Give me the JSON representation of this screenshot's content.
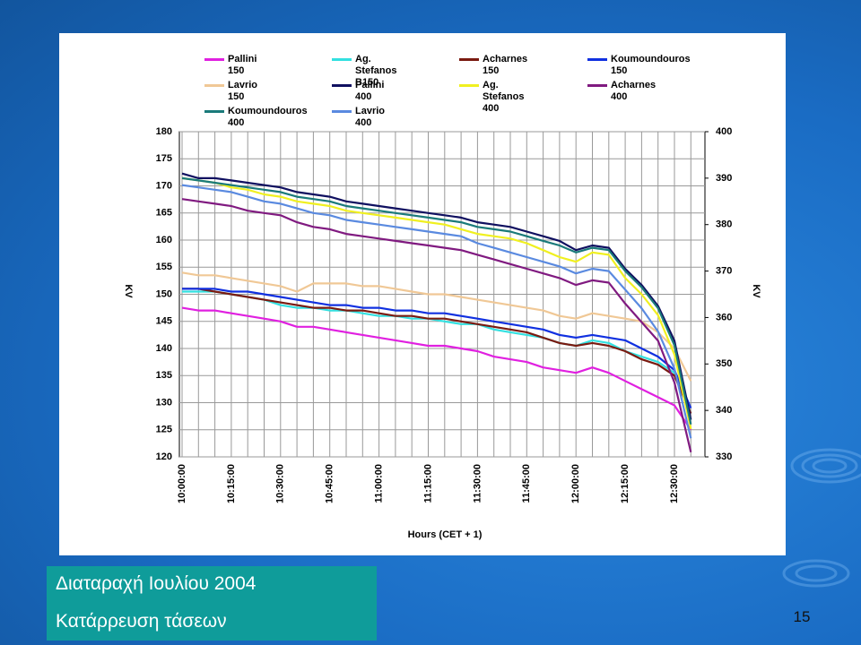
{
  "slide": {
    "title": "Διαταραχή Ιουλίου 2004",
    "subtitle": "Κατάρρευση τάσεων",
    "page_number": 15
  },
  "chart_data": {
    "type": "line",
    "x_label": "Hours (CET + 1)",
    "y_label": "KV",
    "y2_label": "KV",
    "categories": [
      "10:00:00",
      null,
      null,
      "10:15:00",
      null,
      null,
      "10:30:00",
      null,
      null,
      "10:45:00",
      null,
      null,
      "11:00:00",
      null,
      null,
      "11:15:00",
      null,
      null,
      "11:30:00",
      null,
      null,
      "11:45:00",
      null,
      null,
      "12:00:00",
      null,
      null,
      "12:15:00",
      null,
      null,
      "12:30:00",
      null
    ],
    "ylim": [
      120,
      180
    ],
    "yticks": [
      120,
      125,
      130,
      135,
      140,
      145,
      150,
      155,
      160,
      165,
      170,
      175,
      180
    ],
    "y2lim": [
      330,
      400
    ],
    "y2ticks": [
      330,
      340,
      350,
      360,
      370,
      380,
      390,
      400
    ],
    "grid": true,
    "series": [
      {
        "name": "Pallini\n150",
        "color": "#e020e0",
        "values": [
          147.5,
          147,
          147,
          146.5,
          146,
          145.5,
          145,
          144,
          144,
          143.5,
          143,
          142.5,
          142,
          141.5,
          141,
          140.5,
          140.5,
          140,
          139.5,
          138.5,
          138,
          137.5,
          136.5,
          136,
          135.5,
          136.5,
          135.5,
          134,
          132.5,
          131,
          129.5,
          125
        ]
      },
      {
        "name": "Ag. Stefanos\nB150",
        "color": "#33e0e0",
        "values": [
          150.5,
          150.5,
          150.5,
          150,
          149.5,
          149,
          148,
          147.5,
          147.5,
          147,
          147,
          146.5,
          146,
          146,
          145.5,
          145.5,
          145,
          144.5,
          144.5,
          143.5,
          143,
          142.5,
          142,
          141,
          140.5,
          141.5,
          141,
          139.5,
          138.5,
          137.5,
          135.5,
          128
        ]
      },
      {
        "name": "Acharnes\n150",
        "color": "#7a1a10",
        "values": [
          151,
          151,
          150.5,
          150,
          149.5,
          149,
          148.5,
          148,
          147.5,
          147.5,
          147,
          147,
          146.5,
          146,
          146,
          145.5,
          145.5,
          145,
          144.5,
          144,
          143.5,
          143,
          142,
          141,
          140.5,
          141,
          140.5,
          139.5,
          138,
          137,
          135,
          128
        ]
      },
      {
        "name": "Koumoundouros\n150",
        "color": "#1030e0",
        "values": [
          151,
          151,
          151,
          150.5,
          150.5,
          150,
          149.5,
          149,
          148.5,
          148,
          148,
          147.5,
          147.5,
          147,
          147,
          146.5,
          146.5,
          146,
          145.5,
          145,
          144.5,
          144,
          143.5,
          142.5,
          142,
          142.5,
          142,
          141.5,
          140,
          138.5,
          136,
          129
        ]
      },
      {
        "name": "Lavrio\n150",
        "color": "#f0c896",
        "values": [
          154,
          153.5,
          153.5,
          153,
          152.5,
          152,
          151.5,
          150.5,
          152,
          152,
          152,
          151.5,
          151.5,
          151,
          150.5,
          150,
          150,
          149.5,
          149,
          148.5,
          148,
          147.5,
          147,
          146,
          145.5,
          146.5,
          146,
          145.5,
          145,
          143,
          140,
          134
        ]
      },
      {
        "name": "Pallini\n400",
        "color": "#101060",
        "axis": "y2",
        "values": [
          391,
          390,
          390,
          389.5,
          389,
          388.5,
          388,
          387,
          386.5,
          386,
          385,
          384.5,
          384,
          383.5,
          383,
          382.5,
          382,
          381.5,
          380.5,
          380,
          379.5,
          378.5,
          377.5,
          376.5,
          374.5,
          375.5,
          375,
          370.5,
          367,
          362.5,
          355,
          338
        ]
      },
      {
        "name": "Ag. Stefanos\n400",
        "color": "#f0f020",
        "axis": "y2",
        "values": [
          390,
          389.5,
          389,
          388,
          387.5,
          386.5,
          386,
          385,
          384.5,
          384,
          383,
          382.5,
          382,
          381.5,
          381,
          380.5,
          380,
          379,
          378,
          377.5,
          377,
          376,
          374.5,
          373,
          372,
          374,
          373.5,
          368.5,
          365,
          360.5,
          352,
          336
        ]
      },
      {
        "name": "Acharnes\n400",
        "color": "#801a80",
        "axis": "y2",
        "values": [
          385.5,
          385,
          384.5,
          384,
          383,
          382.5,
          382,
          380.5,
          379.5,
          379,
          378,
          377.5,
          377,
          376.5,
          376,
          375.5,
          375,
          374.5,
          373.5,
          372.5,
          371.5,
          370.5,
          369.5,
          368.5,
          367,
          368,
          367.5,
          363,
          359,
          355,
          346,
          331
        ]
      },
      {
        "name": "Koumoundouros\n400",
        "color": "#1a7a7a",
        "axis": "y2",
        "values": [
          390,
          389.5,
          389,
          388.5,
          388,
          387.5,
          387,
          386,
          385.5,
          385,
          384,
          383.5,
          383,
          382.5,
          382,
          381.5,
          381,
          380.5,
          379.5,
          379,
          378.5,
          377.5,
          376.5,
          375.5,
          374,
          375,
          374.5,
          370,
          366.5,
          362,
          354,
          337
        ]
      },
      {
        "name": "Lavrio\n400",
        "color": "#5a8ae0",
        "axis": "y2",
        "values": [
          388.5,
          388,
          387.5,
          387,
          386,
          385,
          384.5,
          383.5,
          382.5,
          382,
          381,
          380.5,
          380,
          379.5,
          379,
          378.5,
          378,
          377.5,
          376,
          375,
          374,
          373,
          372,
          371,
          369.5,
          370.5,
          370,
          366,
          362,
          357,
          349,
          334
        ]
      }
    ]
  }
}
